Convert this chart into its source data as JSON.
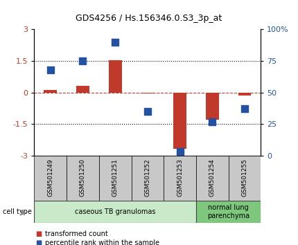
{
  "title": "GDS4256 / Hs.156346.0.S3_3p_at",
  "samples": [
    "GSM501249",
    "GSM501250",
    "GSM501251",
    "GSM501252",
    "GSM501253",
    "GSM501254",
    "GSM501255"
  ],
  "transformed_count": [
    0.12,
    0.32,
    1.52,
    -0.05,
    -2.68,
    -1.3,
    -0.15
  ],
  "percentile_rank": [
    68,
    75,
    90,
    35,
    3,
    27,
    37
  ],
  "ylim": [
    -3,
    3
  ],
  "yticks_left": [
    -3,
    -1.5,
    0,
    1.5,
    3
  ],
  "yticks_right_pct": [
    0,
    25,
    50,
    75,
    100
  ],
  "dotted_lines": [
    -1.5,
    1.5
  ],
  "bar_color": "#c0392b",
  "dot_color": "#2452a0",
  "cell_type_groups": [
    {
      "label": "caseous TB granulomas",
      "samples": [
        0,
        1,
        2,
        3,
        4
      ],
      "color": "#c8eac8"
    },
    {
      "label": "normal lung\nparenchyma",
      "samples": [
        5,
        6
      ],
      "color": "#7dc87d"
    }
  ],
  "cell_type_label": "cell type",
  "legend_red": "transformed count",
  "legend_blue": "percentile rank within the sample",
  "tick_label_color_left": "#c0392b",
  "tick_label_color_right": "#2452a0",
  "xlabel_bg": "#c8c8c8",
  "title_fontsize": 9
}
